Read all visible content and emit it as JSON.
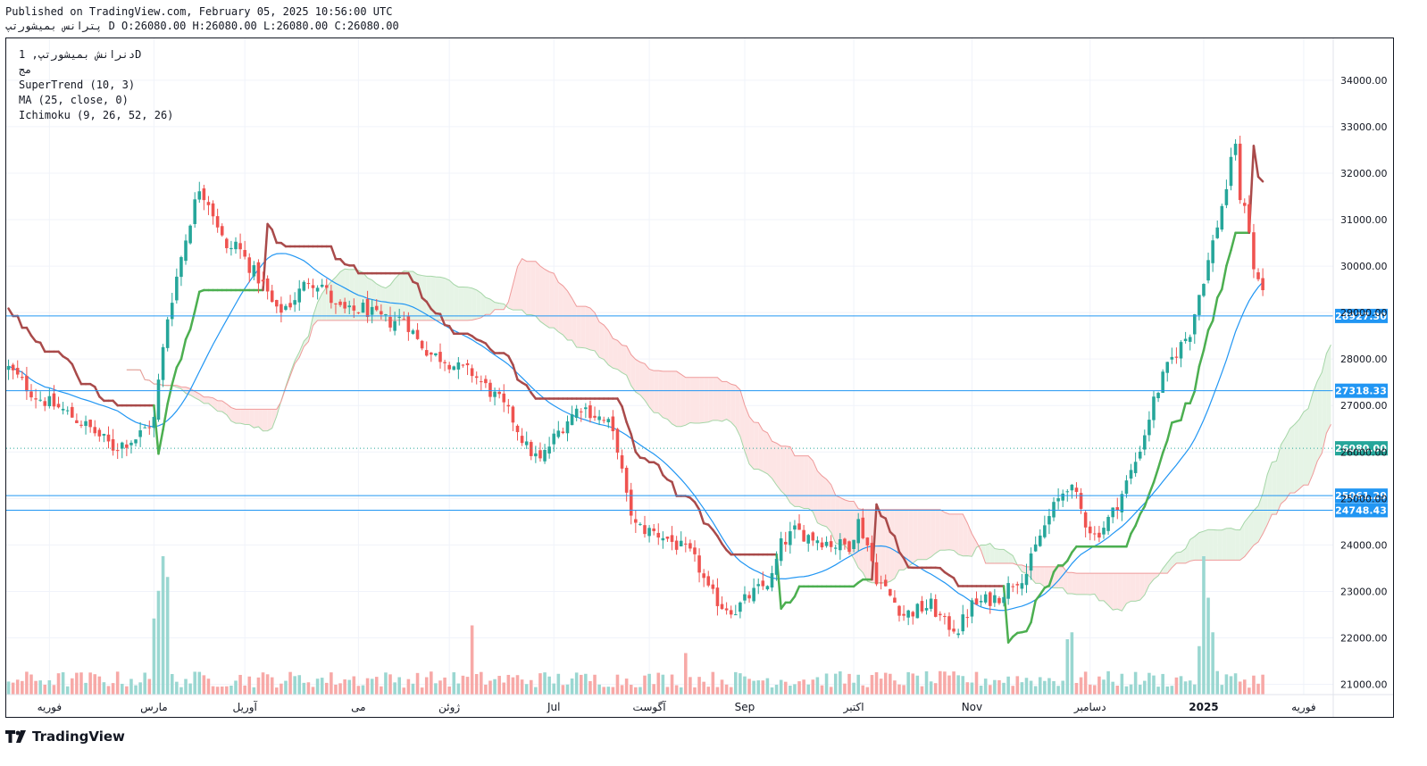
{
  "header": {
    "published": "Published on TradingView.com, February 05, 2025 10:56:00 UTC",
    "ohlc": "پترانس بمیشورتپ D O:26080.00 H:26080.00 L:26080.00 C:26080.00"
  },
  "legend": {
    "symbol": "دنرانش بمیشورتپ, 1D",
    "exchange": "مج",
    "supertrend": "SuperTrend (10, 3)",
    "ma": "MA (25, close, 0)",
    "ichimoku": "Ichimoku (9, 26, 52, 26)"
  },
  "footer": {
    "brand": "TradingView"
  },
  "colors": {
    "up": "#26a69a",
    "down": "#ef5350",
    "supertrend_up": "#4caf50",
    "supertrend_down": "#a94a4a",
    "ma": "#2196f3",
    "hline": "#2196f3",
    "last_price": "#26a69a",
    "cloud_bull": "#e6f4e6",
    "cloud_bear": "#fde5e5"
  },
  "chart_data": {
    "type": "candlestick",
    "yaxis": {
      "range": [
        20300,
        34900
      ],
      "ticks": [
        "34000.00",
        "33000.00",
        "32000.00",
        "31000.00",
        "30000.00",
        "29000.00",
        "28000.00",
        "27000.00",
        "26000.00",
        "25000.00",
        "24000.00",
        "23000.00",
        "22000.00",
        "21000.00"
      ]
    },
    "xaxis": {
      "bars": 292,
      "ticks": [
        {
          "label": "فوریه",
          "bar": 9
        },
        {
          "label": "مارس",
          "bar": 32
        },
        {
          "label": "آوریل",
          "bar": 52
        },
        {
          "label": "می",
          "bar": 77
        },
        {
          "label": "ژوئن",
          "bar": 97
        },
        {
          "label": "Jul",
          "bar": 120
        },
        {
          "label": "آگوست",
          "bar": 141
        },
        {
          "label": "Sep",
          "bar": 162
        },
        {
          "label": "اکتبر",
          "bar": 186
        },
        {
          "label": "Nov",
          "bar": 212
        },
        {
          "label": "دسامبر",
          "bar": 238
        },
        {
          "label": "2025",
          "bar": 263
        },
        {
          "label": "فوریه",
          "bar": 285
        }
      ]
    },
    "horizontal_lines": [
      {
        "value": 28927.3,
        "label": "28927.30"
      },
      {
        "value": 27318.33,
        "label": "27318.33"
      },
      {
        "value": 25061.29,
        "label": "25061.29"
      },
      {
        "value": 24748.43,
        "label": "24748.43"
      }
    ],
    "last_price": {
      "value": 26080.0,
      "label": "26080.00"
    },
    "price_path": [
      [
        0,
        27800
      ],
      [
        6,
        27200
      ],
      [
        12,
        26900
      ],
      [
        18,
        26500
      ],
      [
        23,
        26100
      ],
      [
        28,
        26300
      ],
      [
        32,
        26700
      ],
      [
        33,
        27500
      ],
      [
        35,
        28900
      ],
      [
        38,
        30200
      ],
      [
        40,
        31000
      ],
      [
        42,
        31700
      ],
      [
        44,
        31400
      ],
      [
        46,
        30900
      ],
      [
        48,
        30300
      ],
      [
        50,
        30500
      ],
      [
        53,
        30000
      ],
      [
        56,
        29600
      ],
      [
        59,
        29000
      ],
      [
        62,
        29200
      ],
      [
        66,
        29700
      ],
      [
        69,
        29600
      ],
      [
        72,
        29100
      ],
      [
        75,
        29000
      ],
      [
        78,
        29100
      ],
      [
        81,
        28900
      ],
      [
        84,
        28800
      ],
      [
        87,
        28900
      ],
      [
        90,
        28400
      ],
      [
        93,
        28100
      ],
      [
        96,
        28000
      ],
      [
        99,
        27800
      ],
      [
        102,
        27700
      ],
      [
        105,
        27400
      ],
      [
        108,
        27100
      ],
      [
        111,
        26700
      ],
      [
        114,
        26100
      ],
      [
        117,
        25800
      ],
      [
        120,
        26300
      ],
      [
        123,
        26700
      ],
      [
        126,
        27000
      ],
      [
        129,
        26800
      ],
      [
        132,
        26600
      ],
      [
        134,
        26100
      ],
      [
        136,
        25000
      ],
      [
        138,
        24400
      ],
      [
        141,
        24300
      ],
      [
        144,
        24200
      ],
      [
        147,
        24000
      ],
      [
        150,
        23800
      ],
      [
        152,
        23500
      ],
      [
        154,
        23000
      ],
      [
        157,
        22700
      ],
      [
        160,
        22600
      ],
      [
        163,
        22900
      ],
      [
        166,
        23100
      ],
      [
        168,
        23300
      ],
      [
        170,
        24000
      ],
      [
        173,
        24300
      ],
      [
        176,
        24200
      ],
      [
        179,
        24100
      ],
      [
        182,
        24000
      ],
      [
        185,
        24000
      ],
      [
        187,
        24500
      ],
      [
        189,
        24000
      ],
      [
        191,
        23300
      ],
      [
        194,
        22900
      ],
      [
        197,
        22500
      ],
      [
        200,
        22600
      ],
      [
        203,
        22700
      ],
      [
        206,
        22300
      ],
      [
        209,
        22200
      ],
      [
        212,
        22700
      ],
      [
        215,
        22800
      ],
      [
        218,
        22900
      ],
      [
        221,
        23200
      ],
      [
        224,
        23400
      ],
      [
        227,
        24200
      ],
      [
        230,
        24800
      ],
      [
        233,
        25300
      ],
      [
        235,
        25000
      ],
      [
        237,
        24500
      ],
      [
        239,
        24200
      ],
      [
        241,
        24400
      ],
      [
        243,
        24700
      ],
      [
        245,
        25100
      ],
      [
        248,
        25800
      ],
      [
        250,
        26400
      ],
      [
        252,
        27100
      ],
      [
        254,
        27600
      ],
      [
        256,
        28000
      ],
      [
        258,
        28300
      ],
      [
        260,
        28600
      ],
      [
        262,
        29400
      ],
      [
        264,
        30100
      ],
      [
        266,
        30900
      ],
      [
        268,
        31700
      ],
      [
        270,
        32700
      ],
      [
        271,
        31300
      ],
      [
        272,
        31400
      ],
      [
        273,
        30800
      ],
      [
        274,
        29900
      ],
      [
        276,
        29500
      ]
    ],
    "volume_spikes": [
      {
        "bar": 32,
        "value": 0.55
      },
      {
        "bar": 33,
        "value": 0.75
      },
      {
        "bar": 34,
        "value": 1.0
      },
      {
        "bar": 35,
        "value": 0.85
      },
      {
        "bar": 102,
        "value": 0.5
      },
      {
        "bar": 149,
        "value": 0.3
      },
      {
        "bar": 233,
        "value": 0.4
      },
      {
        "bar": 234,
        "value": 0.45
      },
      {
        "bar": 262,
        "value": 0.35
      },
      {
        "bar": 263,
        "value": 1.0
      },
      {
        "bar": 264,
        "value": 0.7
      },
      {
        "bar": 265,
        "value": 0.45
      }
    ]
  }
}
